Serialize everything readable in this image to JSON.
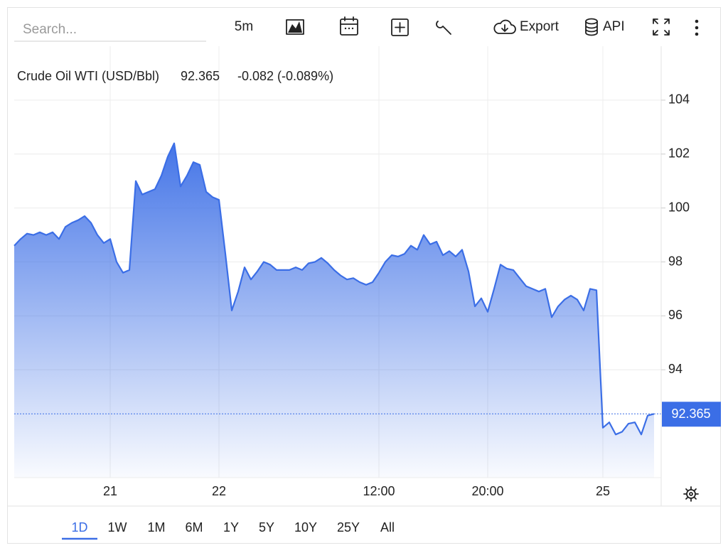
{
  "toolbar": {
    "search_placeholder": "Search...",
    "interval": "5m",
    "export": "Export",
    "api": "API"
  },
  "range_buttons": [
    "1D",
    "1W",
    "1M",
    "6M",
    "1Y",
    "5Y",
    "10Y",
    "25Y",
    "All"
  ],
  "active_range": "1D",
  "chart_data": {
    "type": "area",
    "title": "Crude Oil WTI (USD/Bbl)",
    "last_price": 92.365,
    "change_label": "-0.082 (-0.089%)",
    "color": "#3b6ee6",
    "change_color": "#e04b4b",
    "categories": [
      null,
      null,
      null,
      null,
      null,
      null,
      null,
      null,
      null,
      null,
      null,
      null,
      null,
      null,
      null,
      "21",
      null,
      null,
      null,
      null,
      null,
      null,
      null,
      null,
      null,
      null,
      null,
      null,
      null,
      null,
      null,
      null,
      "22",
      null,
      null,
      null,
      null,
      null,
      null,
      null,
      null,
      null,
      null,
      null,
      null,
      null,
      null,
      null,
      null,
      null,
      null,
      null,
      null,
      null,
      null,
      null,
      null,
      "12:00",
      null,
      null,
      null,
      null,
      null,
      null,
      null,
      null,
      null,
      null,
      null,
      null,
      null,
      null,
      null,
      null,
      "20:00",
      null,
      null,
      null,
      null,
      null,
      null,
      null,
      null,
      null,
      null,
      null,
      null,
      null,
      null,
      null,
      null,
      null,
      "25",
      null,
      null,
      null,
      null,
      null,
      null,
      null,
      null
    ],
    "values": [
      98.6,
      98.85,
      99.05,
      99.0,
      99.1,
      99.0,
      99.1,
      98.85,
      99.3,
      99.45,
      99.55,
      99.7,
      99.45,
      99.0,
      98.7,
      98.85,
      98.0,
      97.6,
      97.7,
      101.0,
      100.5,
      100.6,
      100.7,
      101.2,
      101.9,
      102.4,
      100.8,
      101.2,
      101.7,
      101.6,
      100.6,
      100.4,
      100.3,
      98.3,
      96.2,
      96.9,
      97.8,
      97.35,
      97.65,
      98.0,
      97.9,
      97.7,
      97.7,
      97.7,
      97.8,
      97.7,
      97.95,
      98.0,
      98.15,
      97.95,
      97.7,
      97.5,
      97.35,
      97.4,
      97.25,
      97.15,
      97.25,
      97.6,
      98.0,
      98.25,
      98.2,
      98.3,
      98.6,
      98.45,
      99.0,
      98.65,
      98.75,
      98.25,
      98.4,
      98.2,
      98.45,
      97.65,
      96.35,
      96.65,
      96.15,
      97.0,
      97.9,
      97.75,
      97.7,
      97.4,
      97.1,
      97.0,
      96.9,
      97.0,
      95.95,
      96.35,
      96.6,
      96.75,
      96.6,
      96.2,
      97.0,
      96.95,
      91.85,
      92.05,
      91.6,
      91.7,
      92.0,
      92.05,
      91.6,
      92.3,
      92.365
    ],
    "ylim": [
      90,
      106
    ],
    "yticks": [
      94,
      96,
      98,
      100,
      102,
      104
    ],
    "grid": true
  }
}
